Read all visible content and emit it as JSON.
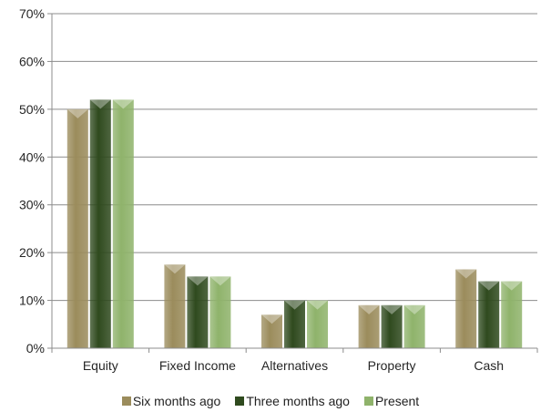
{
  "chart_data": {
    "type": "bar",
    "categories": [
      "Equity",
      "Fixed Income",
      "Alternatives",
      "Property",
      "Cash"
    ],
    "series": [
      {
        "name": "Six months ago",
        "values": [
          50,
          17.5,
          7,
          9,
          16.5
        ],
        "color": "#9b8c5c"
      },
      {
        "name": "Three months ago",
        "values": [
          52,
          15,
          10,
          9,
          14
        ],
        "color": "#2f4a1e"
      },
      {
        "name": "Present",
        "values": [
          52,
          15,
          10,
          9,
          14
        ],
        "color": "#8fb36b"
      }
    ],
    "ylim": [
      0,
      70
    ],
    "yticks": [
      0,
      10,
      20,
      30,
      40,
      50,
      60,
      70
    ],
    "ytick_labels": [
      "0%",
      "10%",
      "20%",
      "30%",
      "40%",
      "50%",
      "60%",
      "70%"
    ],
    "grid": true,
    "legend": "bottom"
  }
}
